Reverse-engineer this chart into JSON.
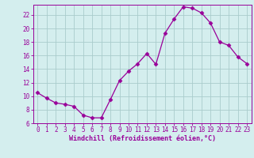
{
  "x": [
    0,
    1,
    2,
    3,
    4,
    5,
    6,
    7,
    8,
    9,
    10,
    11,
    12,
    13,
    14,
    15,
    16,
    17,
    18,
    19,
    20,
    21,
    22,
    23
  ],
  "y": [
    10.5,
    9.7,
    9.0,
    8.8,
    8.5,
    7.2,
    6.8,
    6.8,
    9.5,
    12.3,
    13.7,
    14.8,
    16.3,
    14.7,
    19.3,
    21.4,
    23.2,
    23.0,
    22.3,
    20.8,
    18.0,
    17.5,
    15.8,
    14.8
  ],
  "line_color": "#990099",
  "marker": "D",
  "marker_size": 2.5,
  "bg_color": "#d4eeee",
  "grid_color": "#aacccc",
  "xlabel": "Windchill (Refroidissement éolien,°C)",
  "xlabel_color": "#990099",
  "tick_color": "#990099",
  "ylim": [
    6,
    23.5
  ],
  "xlim": [
    -0.5,
    23.5
  ],
  "yticks": [
    6,
    8,
    10,
    12,
    14,
    16,
    18,
    20,
    22
  ],
  "xticks": [
    0,
    1,
    2,
    3,
    4,
    5,
    6,
    7,
    8,
    9,
    10,
    11,
    12,
    13,
    14,
    15,
    16,
    17,
    18,
    19,
    20,
    21,
    22,
    23
  ],
  "tick_fontsize": 5.5,
  "xlabel_fontsize": 6.0
}
